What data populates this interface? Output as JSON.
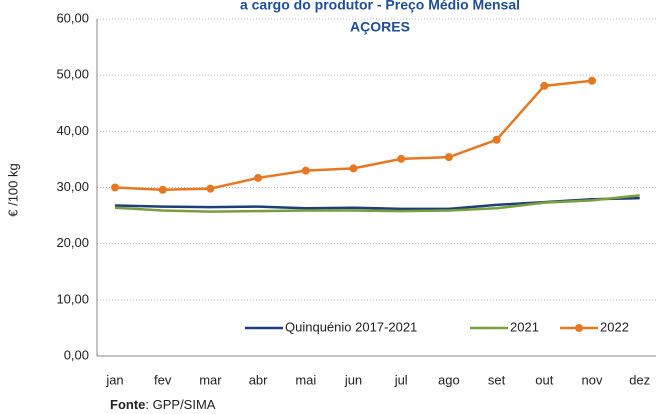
{
  "chart_data": {
    "type": "line",
    "title": "a cargo do produtor -  Preço Médio Mensal",
    "subtitle": "AÇORES",
    "y_label": "€ /100 kg",
    "categories": [
      "jan",
      "fev",
      "mar",
      "abr",
      "mai",
      "jun",
      "jul",
      "ago",
      "set",
      "out",
      "nov",
      "dez"
    ],
    "series": [
      {
        "name": "Quinquénio  2017-2021",
        "color": "#1f3d7a",
        "values": [
          26.8,
          26.6,
          26.5,
          26.6,
          26.3,
          26.4,
          26.2,
          26.2,
          26.9,
          27.4,
          27.9,
          28.1
        ]
      },
      {
        "name": "2021",
        "color": "#77a03c",
        "values": [
          26.4,
          25.9,
          25.7,
          25.8,
          25.9,
          25.9,
          25.8,
          25.9,
          26.3,
          27.3,
          27.7,
          28.6
        ]
      },
      {
        "name": "2022",
        "color": "#e87722",
        "marker": "circle",
        "values": [
          30.0,
          29.6,
          29.8,
          31.7,
          33.0,
          33.4,
          35.1,
          35.4,
          38.5,
          48.1,
          49.0,
          null
        ]
      }
    ],
    "ylim": [
      0,
      60
    ],
    "yticks": [
      {
        "value": 0,
        "label": "0,00"
      },
      {
        "value": 10,
        "label": "10,00"
      },
      {
        "value": 20,
        "label": "20,00"
      },
      {
        "value": 30,
        "label": "30,00"
      },
      {
        "value": 40,
        "label": "40,00"
      },
      {
        "value": 50,
        "label": "50,00"
      },
      {
        "value": 60,
        "label": "60,00"
      }
    ],
    "grid": true,
    "legend": "bottom-right",
    "source": {
      "label": "Fonte",
      "text": ": GPP/SIMA"
    }
  }
}
